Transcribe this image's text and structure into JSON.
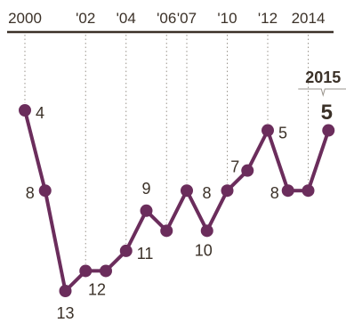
{
  "chart_data": {
    "type": "line",
    "x_tick_labels": [
      "2000",
      "'02",
      "'04",
      "'06",
      "'07",
      "'10",
      "'12",
      "2014"
    ],
    "highlight": {
      "label": "2015",
      "value_label": "5"
    },
    "points": [
      {
        "y": 4,
        "label": "4"
      },
      {
        "y": 8,
        "label": "8"
      },
      {
        "y": 13,
        "label": "13"
      },
      {
        "y": 12,
        "label": ""
      },
      {
        "y": 12,
        "label": "12"
      },
      {
        "y": 11,
        "label": "11"
      },
      {
        "y": 9,
        "label": "9"
      },
      {
        "y": 10,
        "label": ""
      },
      {
        "y": 8,
        "label": ""
      },
      {
        "y": 10,
        "label": "10"
      },
      {
        "y": 8,
        "label": "8"
      },
      {
        "y": 7,
        "label": "7"
      },
      {
        "y": 5,
        "label": "5"
      },
      {
        "y": 8,
        "label": "8"
      },
      {
        "y": 8,
        "label": ""
      },
      {
        "y": 5,
        "label": ""
      }
    ],
    "ylim": [
      4,
      13
    ],
    "y_inverted": true,
    "grid": "vertical dotted lines at labeled ticks",
    "colors": {
      "line": "#6b2d5c",
      "marker": "#6b2d5c",
      "axis": "#3b3128",
      "grid": "#9a948c",
      "text": "#3b3128"
    }
  }
}
